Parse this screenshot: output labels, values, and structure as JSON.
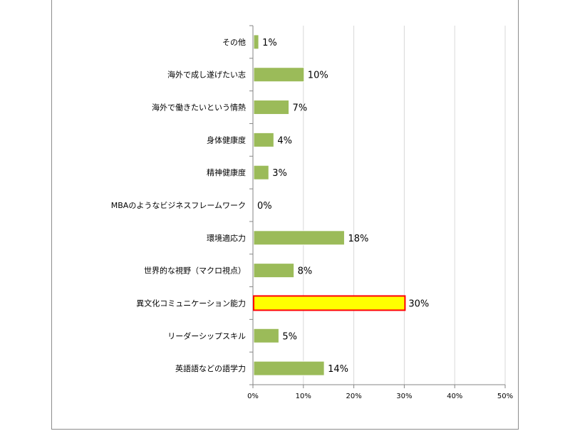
{
  "chart_data": {
    "type": "bar",
    "orientation": "horizontal",
    "categories": [
      "その他",
      "海外で成し遂げたい志",
      "海外で働きたいという情熱",
      "身体健康度",
      "精神健康度",
      "MBAのようなビジネスフレームワーク",
      "環境適応力",
      "世界的な視野（マクロ視点）",
      "異文化コミュニケーション能力",
      "リーダーシップスキル",
      "英語語などの語学力"
    ],
    "values": [
      1,
      10,
      7,
      4,
      3,
      0,
      18,
      8,
      30,
      5,
      14
    ],
    "value_labels": [
      "1%",
      "10%",
      "7%",
      "4%",
      "3%",
      "0%",
      "18%",
      "8%",
      "30%",
      "5%",
      "14%"
    ],
    "highlight_index": 8,
    "xlim": [
      0,
      50
    ],
    "x_ticks": [
      0,
      10,
      20,
      30,
      40,
      50
    ],
    "x_tick_labels": [
      "0%",
      "10%",
      "20%",
      "30%",
      "40%",
      "50%"
    ],
    "grid": "vertical",
    "colors": {
      "bar_fill": "#9bbb59",
      "bar_stroke": "#ffffff",
      "highlight_fill": "#ffff00",
      "highlight_stroke": "#ff0000",
      "grid": "#d9d9d9",
      "axis": "#868686"
    }
  }
}
